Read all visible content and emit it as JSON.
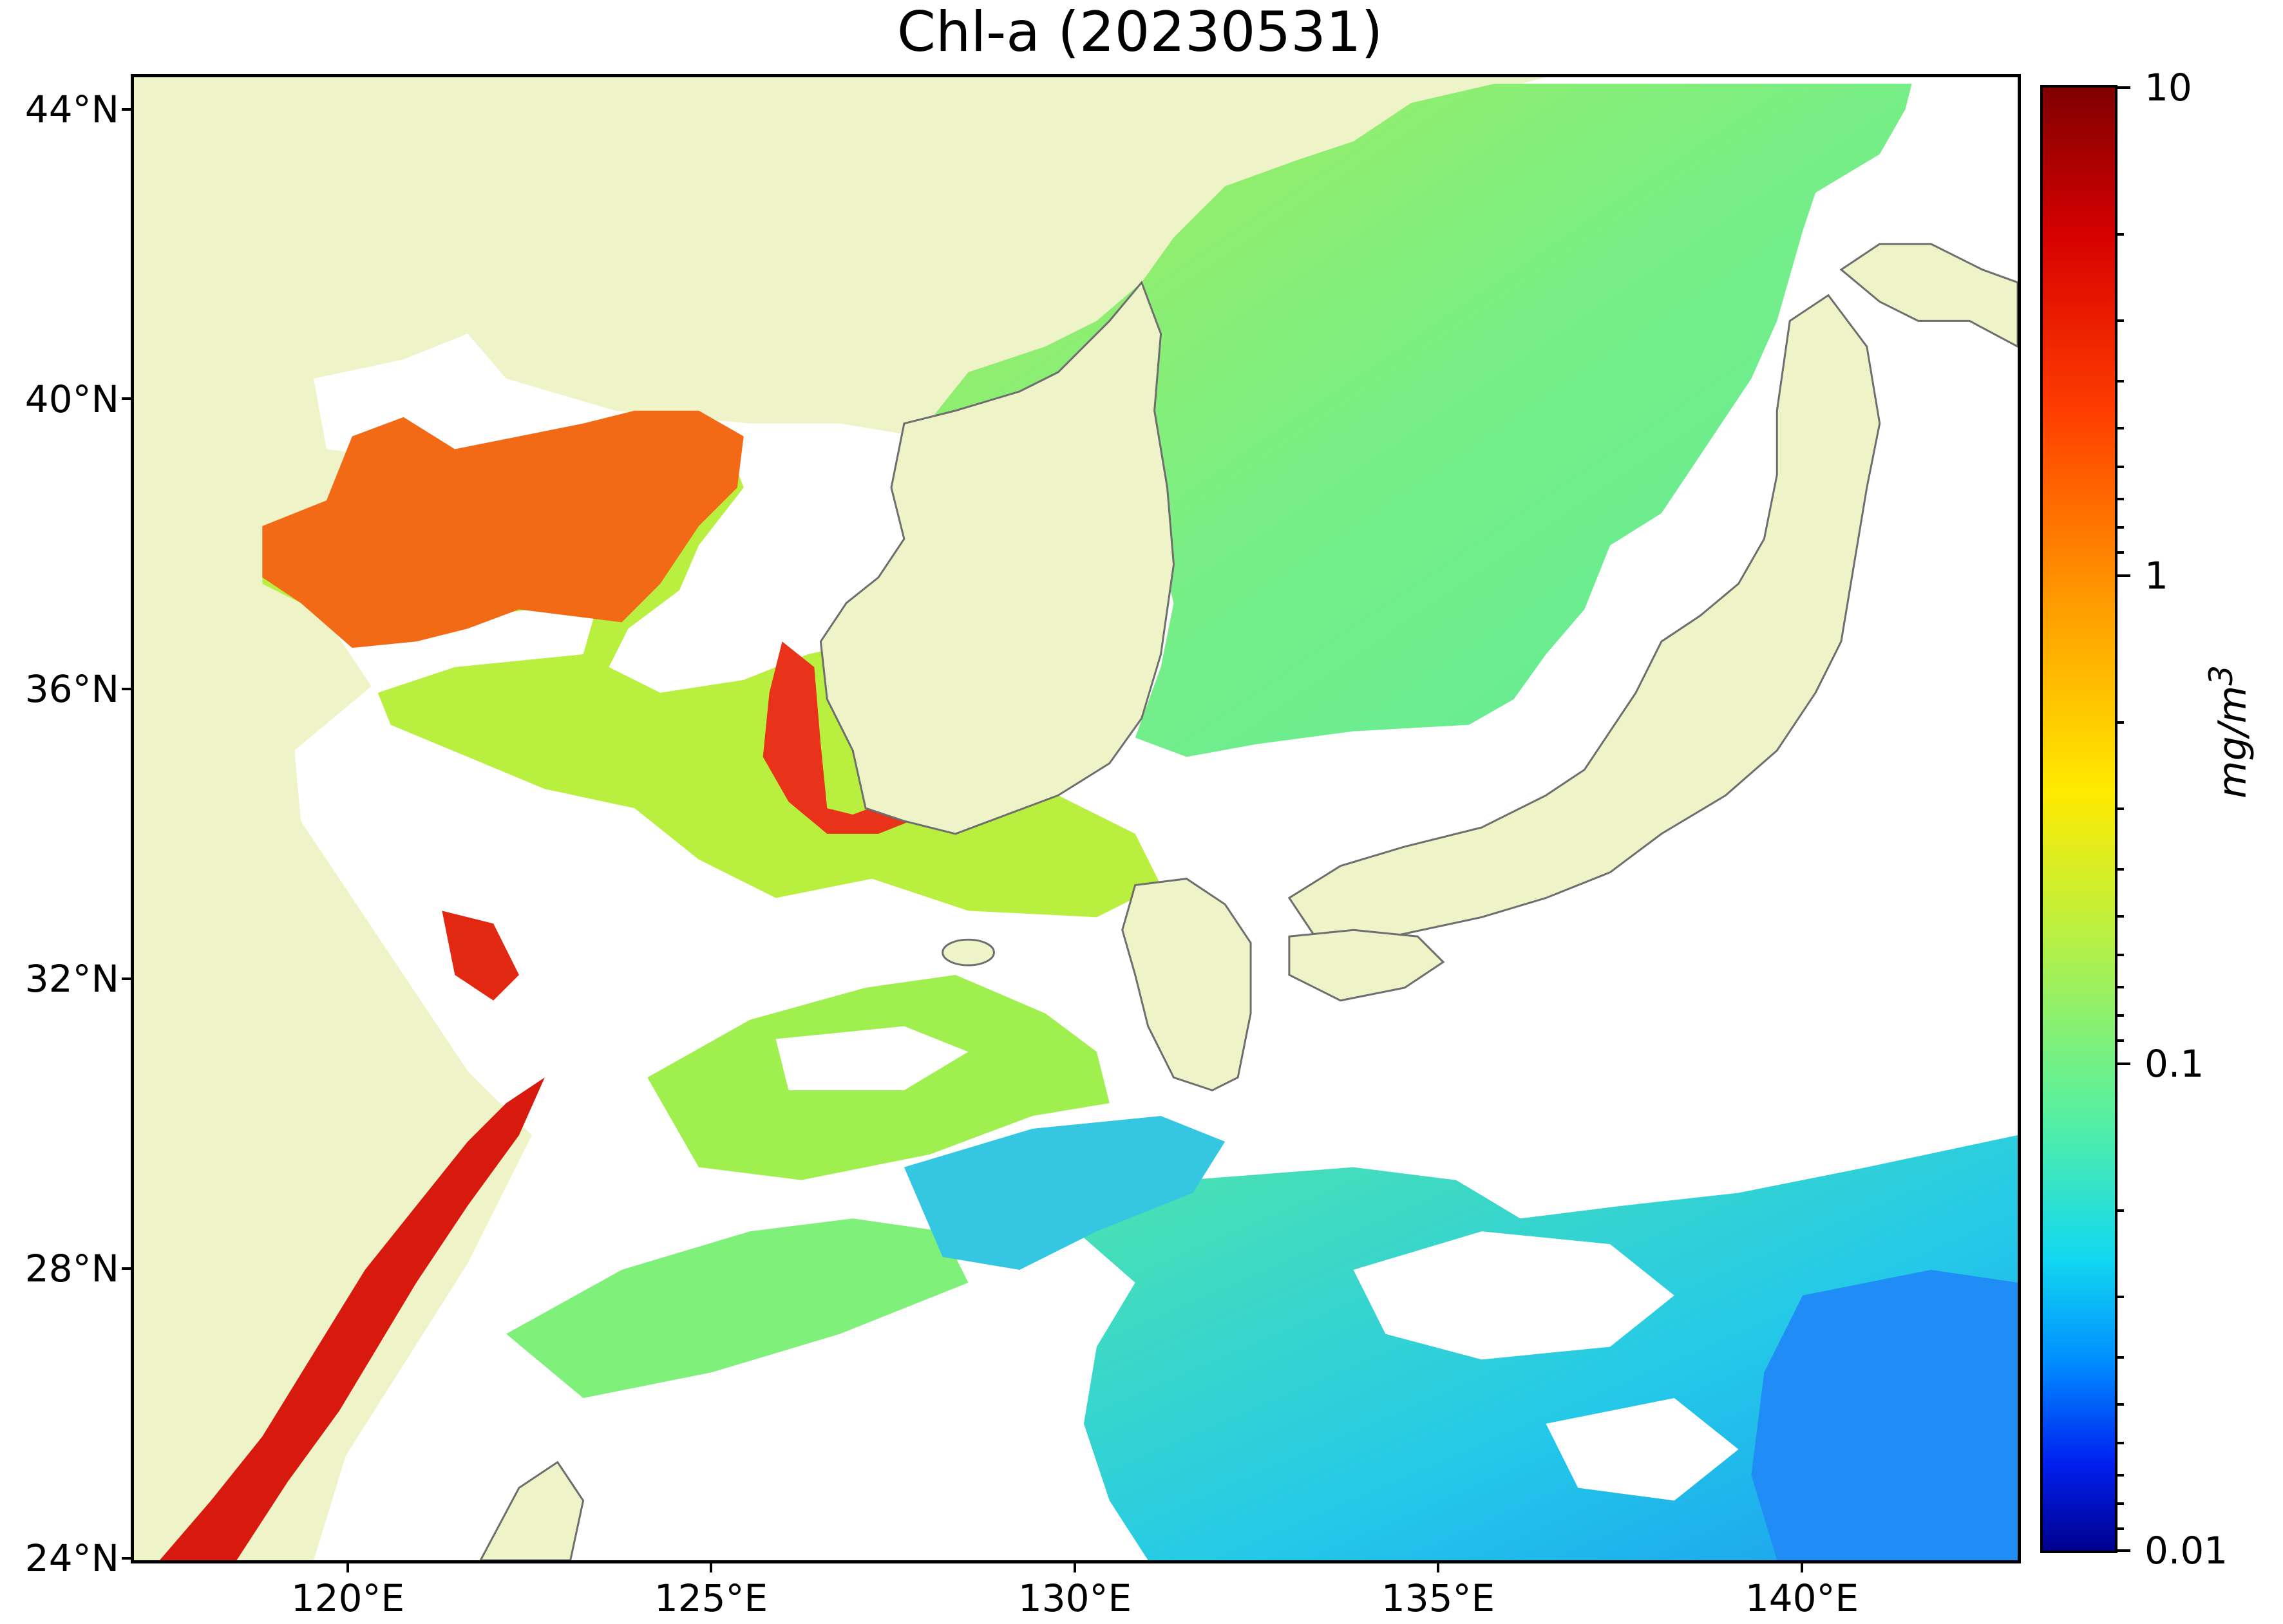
{
  "title": "Chl-a (20230531)",
  "map": {
    "land_color": "#eef3c8",
    "no_data_color": "#ffffff",
    "coast_color": "#6e6e6e",
    "lat_labels": [
      "44°N",
      "40°N",
      "36°N",
      "32°N",
      "28°N",
      "24°N"
    ],
    "lon_labels": [
      "120°E",
      "125°E",
      "130°E",
      "135°E",
      "140°E"
    ]
  },
  "colorbar": {
    "scale": "log",
    "labels": [
      "10",
      "1",
      "0.1",
      "0.01"
    ],
    "unit": "mg/m3",
    "colormap": "jet"
  }
}
